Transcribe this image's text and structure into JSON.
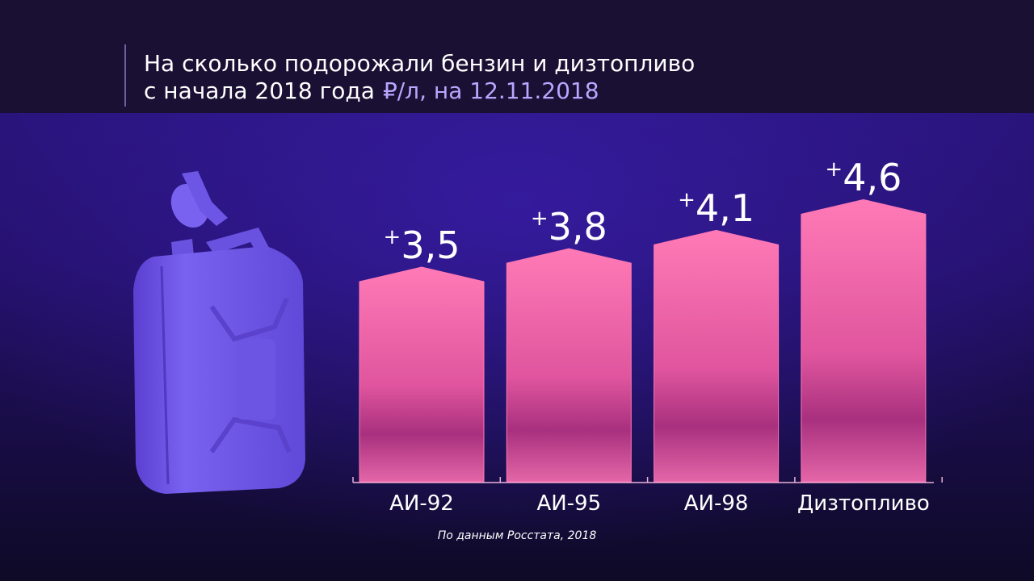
{
  "chart_data": {
    "type": "bar",
    "title": [
      "На сколько подорожали бензин и дизтопливо",
      "с начала 2018 года"
    ],
    "subtitle": "₽/л, на 12.11.2018",
    "categories": [
      "АИ-92",
      "АИ-95",
      "АИ-98",
      "Дизтопливо"
    ],
    "values": [
      3.5,
      3.8,
      4.1,
      4.6
    ],
    "value_labels": [
      "+3,5",
      "+3,8",
      "+4,1",
      "+4,6"
    ],
    "color": "#ff78b4",
    "source": "По данным Росстата, 2018"
  }
}
